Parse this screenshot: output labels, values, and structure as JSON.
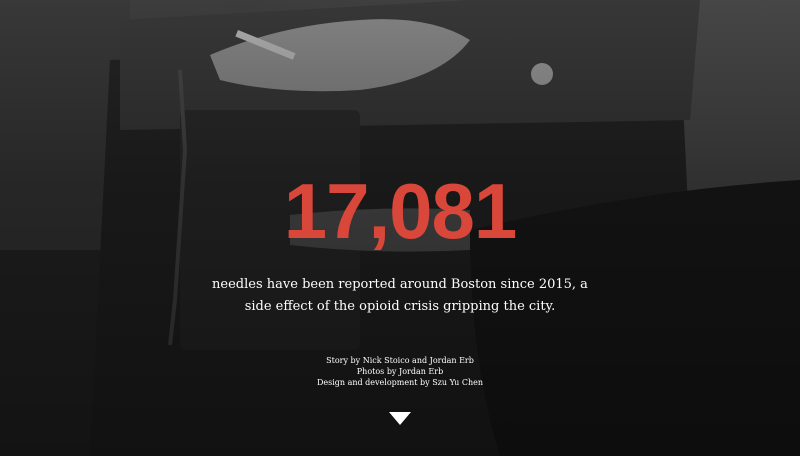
{
  "hero": {
    "stat_number": "17,081",
    "stat_description": "needles have been reported around Boston since 2015, a side effect of the opioid crisis gripping the city.",
    "credits": {
      "story": "Story by Nick Stoico and Jordan Erb",
      "photos": "Photos by Jordan Erb",
      "design": "Design and development by Szu Yu Chen"
    },
    "scroll_icon": "triangle-down-icon"
  },
  "colors": {
    "accent": "#d9463a",
    "text": "#ffffff",
    "background": "#141414"
  }
}
